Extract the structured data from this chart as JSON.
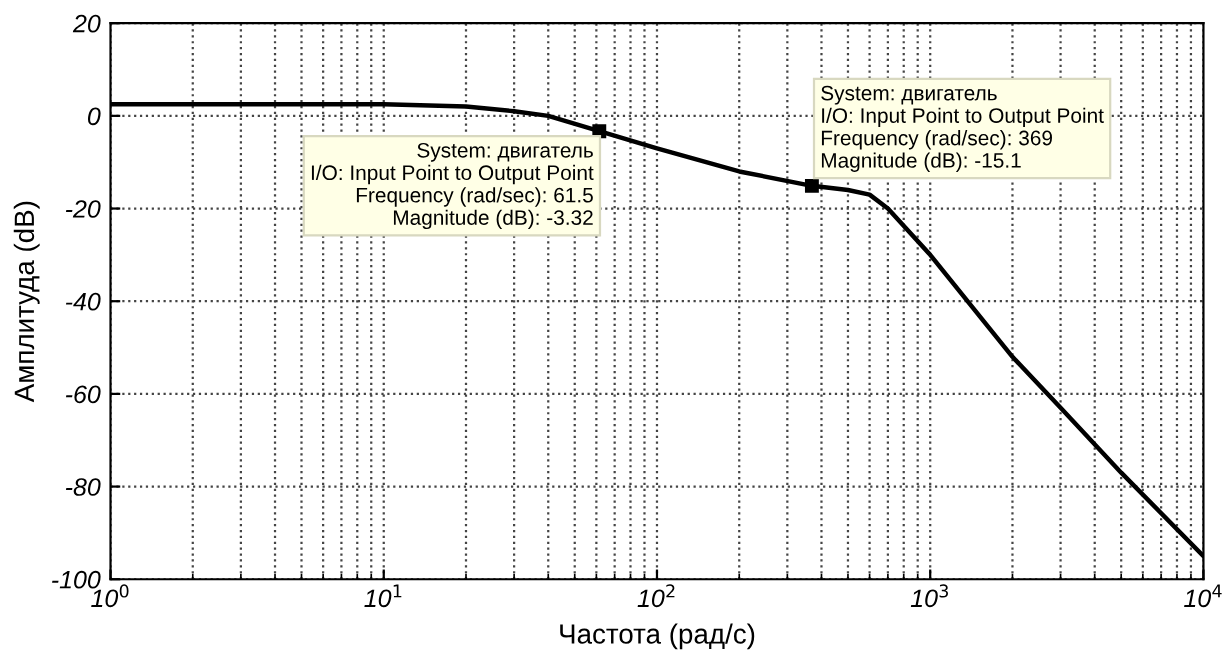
{
  "chart_data": {
    "type": "line",
    "xlabel": "Частота (рад/с)",
    "ylabel": "Амплитуда (dB)",
    "log": "x",
    "x": [
      1,
      3,
      10,
      20,
      30,
      40,
      61.5,
      100,
      200,
      369,
      500,
      600,
      700,
      1000,
      2000,
      3000,
      5000,
      10000
    ],
    "series": [
      {
        "color": "#000000",
        "values": [
          2.5,
          2.5,
          2.5,
          2,
          1,
          0,
          -3.32,
          -7,
          -12,
          -15.1,
          -16,
          -17,
          -20,
          -30,
          -52,
          -63,
          -77,
          -95
        ]
      }
    ],
    "xlim": [
      1,
      10000
    ],
    "xticks": [
      {
        "value": 1,
        "label": "10$^{0}$"
      },
      {
        "value": 10,
        "label": "10$^{1}$"
      },
      {
        "value": 100,
        "label": "10$^{2}$"
      },
      {
        "value": 1000,
        "label": "10$^{3}$"
      },
      {
        "value": 10000,
        "label": "10$^{4}$"
      }
    ],
    "ylim": [
      -100,
      20
    ],
    "yticks": [
      -100,
      -80,
      -60,
      -40,
      -20,
      0,
      20
    ],
    "grid": true,
    "marker": "none",
    "line_style": "solid",
    "annotations": [
      {
        "text": "System: двигатель\nI/O: Input Point to Output Point\nFrequency (rad/sec): 61.5\nMagnitude (dB): -3.32",
        "x": 61.5,
        "y": -3.32
      },
      {
        "text": "System: двигатель\nI/O: Input Point to Output Point\nFrequency (rad/sec): 369\nMagnitude (dB): -15.1",
        "x": 369,
        "y": -15.1
      }
    ]
  }
}
